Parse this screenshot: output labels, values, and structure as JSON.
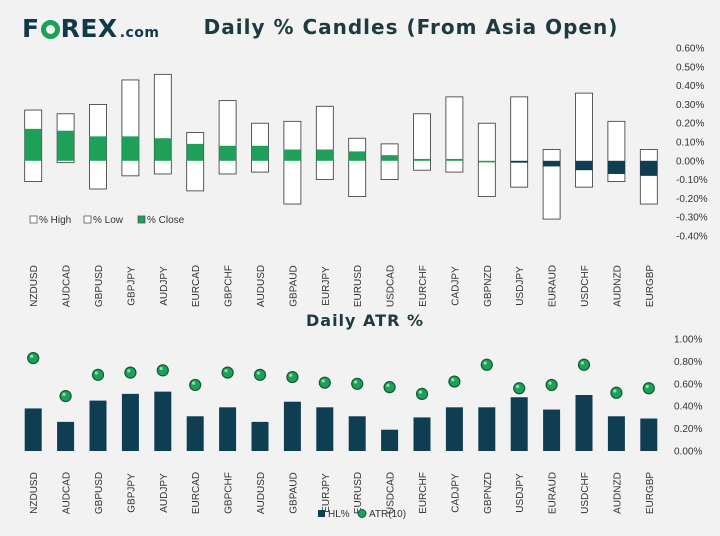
{
  "logo": {
    "text_before": "F",
    "text_after": "REX",
    "suffix": ".com",
    "ring_color": "#1fa05a",
    "text_color": "#13384a"
  },
  "chart_data": [
    {
      "type": "bar",
      "title": "Daily % Candles (From Asia Open)",
      "categories": [
        "NZDUSD",
        "AUDCAD",
        "GBPUSD",
        "GBPJPY",
        "AUDJPY",
        "EURCAD",
        "GBPCHF",
        "AUDUSD",
        "GBPAUD",
        "EURJPY",
        "EURUSD",
        "USDCAD",
        "EURCHF",
        "CADJPY",
        "GBPNZD",
        "USDJPY",
        "EURAUD",
        "USDCHF",
        "AUDNZD",
        "EURGBP"
      ],
      "series": [
        {
          "name": "% High",
          "values": [
            0.27,
            0.25,
            0.3,
            0.43,
            0.46,
            0.15,
            0.32,
            0.2,
            0.21,
            0.29,
            0.12,
            0.09,
            0.25,
            0.34,
            0.2,
            0.34,
            0.06,
            0.36,
            0.21,
            0.06
          ]
        },
        {
          "name": "% Low",
          "values": [
            -0.11,
            -0.01,
            -0.15,
            -0.08,
            -0.07,
            -0.16,
            -0.07,
            -0.06,
            -0.23,
            -0.1,
            -0.19,
            -0.1,
            -0.05,
            -0.06,
            -0.19,
            -0.14,
            -0.31,
            -0.14,
            -0.11,
            -0.23
          ]
        },
        {
          "name": "% Close",
          "values": [
            0.17,
            0.16,
            0.13,
            0.13,
            0.12,
            0.09,
            0.08,
            0.08,
            0.06,
            0.06,
            0.05,
            0.03,
            0.01,
            0.01,
            0.0,
            -0.01,
            -0.03,
            -0.05,
            -0.07,
            -0.08
          ]
        }
      ],
      "ylim": [
        -0.4,
        0.6
      ],
      "yticks": [
        "-0.40%",
        "-0.30%",
        "-0.20%",
        "-0.10%",
        "0.00%",
        "0.10%",
        "0.20%",
        "0.30%",
        "0.40%",
        "0.50%",
        "0.60%"
      ],
      "legend_position": "bottom-left",
      "colors": {
        "positive_close": "#1fa05a",
        "negative_close": "#0f3d52",
        "range_box": "#ffffff",
        "outline": "#333333"
      }
    },
    {
      "type": "bar",
      "title": "Daily ATR %",
      "categories": [
        "NZDUSD",
        "AUDCAD",
        "GBPUSD",
        "GBPJPY",
        "AUDJPY",
        "EURCAD",
        "GBPCHF",
        "AUDUSD",
        "GBPAUD",
        "EURJPY",
        "EURUSD",
        "USDCAD",
        "EURCHF",
        "CADJPY",
        "GBPNZD",
        "USDJPY",
        "EURAUD",
        "USDCHF",
        "AUDNZD",
        "EURGBP"
      ],
      "series": [
        {
          "name": "HL%",
          "values": [
            0.38,
            0.26,
            0.45,
            0.51,
            0.53,
            0.31,
            0.39,
            0.26,
            0.44,
            0.39,
            0.31,
            0.19,
            0.3,
            0.39,
            0.39,
            0.48,
            0.37,
            0.5,
            0.31,
            0.29
          ]
        },
        {
          "name": "ATR(10)",
          "values": [
            0.83,
            0.49,
            0.68,
            0.7,
            0.72,
            0.59,
            0.7,
            0.68,
            0.66,
            0.61,
            0.6,
            0.57,
            0.51,
            0.62,
            0.77,
            0.56,
            0.59,
            0.77,
            0.52,
            0.56
          ]
        }
      ],
      "ylim": [
        0,
        1.0
      ],
      "yticks": [
        "0.00%",
        "0.20%",
        "0.40%",
        "0.60%",
        "0.80%",
        "1.00%"
      ],
      "legend_position": "bottom-center",
      "colors": {
        "hl_bar": "#0f3d52",
        "atr_dot": "#1fa05a"
      }
    }
  ]
}
